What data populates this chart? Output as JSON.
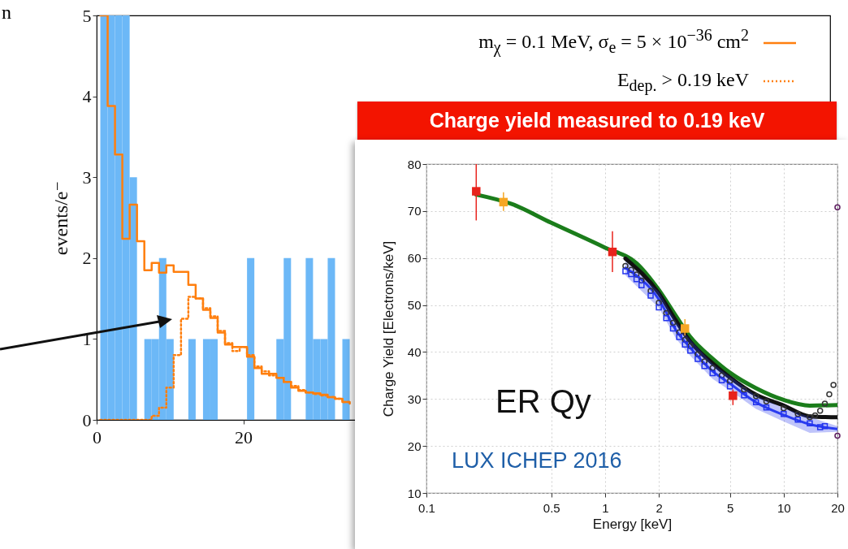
{
  "chart_data": [
    {
      "type": "histogram",
      "ylabel": "events/e⁻",
      "annotations": [
        "n"
      ],
      "legend": "top right",
      "bins": [
        0.5,
        1.5,
        2.5,
        3.5,
        4.5,
        5.5,
        6.5,
        7.5,
        8.5,
        9.5,
        10.5,
        11.5,
        12.5,
        13.5,
        14.5,
        15.5,
        16.5,
        17.5,
        18.5,
        19.5,
        20.5,
        21.5,
        22.5,
        23.5,
        24.5,
        25.5,
        26.5,
        27.5,
        28.5,
        29.5,
        30.5,
        31.5,
        32.5,
        33.5,
        34.5
      ],
      "values": [
        5,
        5,
        5,
        5,
        3,
        0,
        1,
        1,
        2,
        1,
        0,
        0,
        1,
        0,
        1,
        1,
        0,
        0,
        0,
        0,
        2,
        0,
        0,
        0,
        1,
        2,
        0,
        0,
        2,
        1,
        1,
        2,
        0,
        1
      ],
      "color": "#6cb8f7",
      "series": [
        {
          "type": "step",
          "name": "m$_{χ}$ = 0.1 MeV,  σ$_{e}$ = 5 × 10$^{−36}$ cm$^{2}$",
          "color": "#ff7f0e",
          "line_style": "solid",
          "x": [
            0.5,
            1.5,
            2.5,
            3.5,
            4.5,
            5.5,
            6.5,
            7.5,
            8.5,
            9.5,
            10.5,
            11.5,
            12.5,
            13.5,
            14.5,
            15.5,
            16.5,
            17.5,
            18.5,
            19.5,
            20.5,
            21.5,
            22.5,
            23.5,
            24.5,
            25.5,
            26.5,
            27.5,
            28.5,
            29.5,
            30.5,
            31.5,
            32.5,
            33.5,
            34.5
          ],
          "values": [
            5,
            3.88,
            3.28,
            2.24,
            2.66,
            2.21,
            1.85,
            1.94,
            1.82,
            1.91,
            1.83,
            1.83,
            1.67,
            1.5,
            1.36,
            1.26,
            1.08,
            0.93,
            0.9,
            0.9,
            0.78,
            0.64,
            0.57,
            0.57,
            0.52,
            0.47,
            0.4,
            0.36,
            0.34,
            0.33,
            0.31,
            0.28,
            0.26,
            0.22,
            0.2
          ]
        },
        {
          "type": "step",
          "name": "E$_{dep.}$ > 0.19 keV",
          "color": "#ff7f0e",
          "line_style": "dotted",
          "x": [
            0.5,
            1.5,
            2.5,
            3.5,
            4.5,
            5.5,
            6.5,
            7.5,
            8.5,
            9.5,
            10.5,
            11.5,
            12.5,
            13.5,
            14.5,
            15.5,
            16.5,
            17.5,
            18.5,
            19.5,
            20.5,
            21.5,
            22.5,
            23.5,
            24.5,
            25.5,
            26.5,
            27.5,
            28.5,
            29.5,
            30.5,
            31.5,
            32.5,
            33.5,
            34.5
          ],
          "values": [
            0,
            0,
            0,
            0,
            0,
            0,
            0,
            0.05,
            0.15,
            0.4,
            0.8,
            1.25,
            1.52,
            1.5,
            1.38,
            1.28,
            1.1,
            0.95,
            0.85,
            0.9,
            0.8,
            0.66,
            0.6,
            0.55,
            0.52,
            0.47,
            0.42,
            0.37,
            0.34,
            0.32,
            0.3,
            0.28,
            0.26,
            0.22,
            0.2
          ]
        }
      ],
      "xlim": [
        0,
        100
      ],
      "xticks": [
        0,
        20
      ],
      "ylim": [
        0,
        5
      ],
      "yticks": [
        0,
        1,
        2,
        3,
        4,
        5
      ]
    },
    {
      "type": "line",
      "title": "Charge yield measured to 0.19 keV",
      "xlabel": "Energy [keV]",
      "ylabel": "Charge Yield [Electrons/keV]",
      "annotations": [
        "ER Qy",
        "LUX ICHEP 2016"
      ],
      "log": "x",
      "grid": true,
      "series": [
        {
          "type": "line",
          "color": "#1b7d1b",
          "x": [
            0.19,
            0.3,
            0.5,
            1,
            1.5,
            2,
            2.5,
            3,
            4,
            5,
            7,
            10,
            14,
            20
          ],
          "values": [
            73.5,
            71.5,
            67.5,
            62.2,
            58.9,
            53.2,
            47.6,
            43.2,
            38.6,
            35.6,
            32.3,
            29.8,
            28.6,
            28.7
          ]
        },
        {
          "type": "line",
          "color": "#111111",
          "x": [
            1.3,
            2,
            2.5,
            3,
            4,
            5,
            7,
            10,
            14,
            20
          ],
          "values": [
            59.9,
            52.5,
            46.6,
            42.2,
            37.6,
            34.6,
            30.9,
            28.6,
            26.3,
            26.1
          ]
        },
        {
          "type": "line",
          "color": "#2a3cf0",
          "x": [
            1.3,
            2,
            2.5,
            3,
            4,
            5,
            7,
            10,
            14,
            20
          ],
          "values": [
            57.9,
            51.2,
            44.6,
            40.9,
            35.9,
            33.3,
            29.3,
            26.6,
            24.6,
            23.6
          ],
          "lower": [
            56.3,
            49.4,
            42.8,
            39.2,
            34.3,
            31.8,
            27.9,
            25.2,
            22.8,
            23
          ],
          "upper": [
            59.3,
            52.8,
            46.4,
            42.6,
            37.5,
            34.8,
            30.7,
            28,
            26.2,
            24.2
          ]
        },
        {
          "type": "scatter",
          "marker": "circle",
          "color": "#333333",
          "x": [
            1.3,
            1.4,
            1.5,
            1.6,
            1.8,
            2,
            2.2,
            2.4,
            2.6,
            2.8,
            3,
            3.3,
            3.6,
            4,
            4.5,
            5,
            6,
            7,
            8,
            10,
            12,
            14,
            15,
            16,
            17,
            18,
            19
          ],
          "values": [
            58.3,
            57.5,
            56.5,
            55.2,
            53,
            50.5,
            48.3,
            46.2,
            44.2,
            42.6,
            41.3,
            39.5,
            38,
            36.6,
            35,
            33.8,
            32,
            30.6,
            29.5,
            28,
            26.8,
            26.1,
            26.5,
            27.5,
            29,
            31,
            33
          ]
        },
        {
          "type": "scatter",
          "marker": "square",
          "color": "#2233ee",
          "x": [
            1.3,
            1.4,
            1.5,
            1.6,
            1.8,
            2,
            2.2,
            2.4,
            2.6,
            2.8,
            3,
            3.3,
            3.6,
            4,
            4.5,
            5,
            6,
            7,
            8,
            10,
            12,
            14,
            16,
            17
          ],
          "values": [
            57.2,
            56.6,
            55.5,
            54.2,
            52,
            49.5,
            47.2,
            45,
            43.2,
            41.6,
            40.3,
            38.5,
            37,
            35.5,
            34,
            32.7,
            30.8,
            29.3,
            28.2,
            26.8,
            25.6,
            24.8,
            24,
            24.2
          ]
        },
        {
          "type": "scatter",
          "marker": "square",
          "color": "#e8231c",
          "x": [
            0.19,
            1.1,
            5.2
          ],
          "values": [
            74.2,
            61.3,
            30.7
          ],
          "errors": [
            [
              68,
              80
            ],
            [
              57,
              65.7
            ],
            [
              28.7,
              32
            ]
          ]
        },
        {
          "type": "scatter",
          "marker": "square",
          "color": "#f5a623",
          "x": [
            0.27,
            2.8
          ],
          "values": [
            71.9,
            45
          ],
          "errors": [
            [
              70,
              74
            ],
            [
              43.5,
              47
            ]
          ]
        },
        {
          "type": "scatter",
          "marker": "circle",
          "color": "#5b1a5e",
          "x": [
            20,
            20
          ],
          "values": [
            70.8,
            22.2
          ]
        }
      ],
      "xlim": [
        0.1,
        20
      ],
      "xticks": [
        0.1,
        0.5,
        1,
        2,
        5,
        10,
        20
      ],
      "ylim": [
        10,
        80
      ],
      "yticks": [
        10,
        20,
        30,
        40,
        50,
        60,
        70,
        80
      ]
    }
  ]
}
